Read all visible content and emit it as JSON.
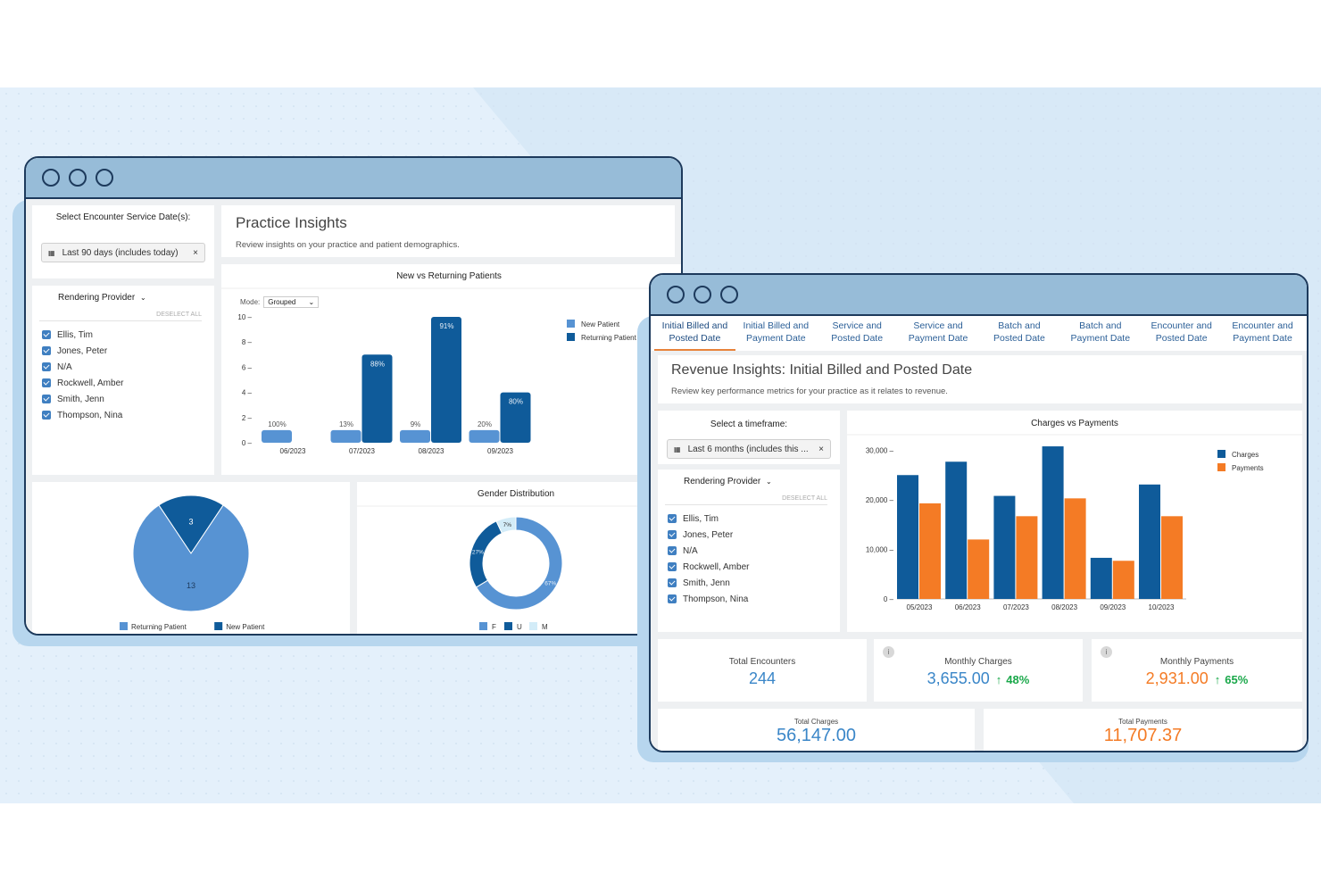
{
  "left_window": {
    "date_filter": {
      "title": "Select Encounter Service Date(s):",
      "chip_label": "Last 90 days (includes today)",
      "chip_close": "×"
    },
    "provider_filter": {
      "title": "Rendering Provider",
      "deselect_label": "DESELECT ALL",
      "providers": [
        "Ellis, Tim",
        "Jones, Peter",
        "N/A",
        "Rockwell, Amber",
        "Smith, Jenn",
        "Thompson, Nina"
      ]
    },
    "header": {
      "title": "Practice Insights",
      "subtitle": "Review insights on your practice and patient demographics."
    },
    "patients_chart": {
      "mode_label": "Mode:",
      "mode_value": "Grouped"
    },
    "patient_pie": {
      "values": [
        3,
        13
      ],
      "labels": [
        "3",
        "13"
      ]
    },
    "gender_chart": {
      "title": "Gender Distribution"
    }
  },
  "right_window": {
    "tabs": [
      {
        "line1": "Initial Billed and",
        "line2": "Posted Date",
        "active": true
      },
      {
        "line1": "Initial Billed and",
        "line2": "Payment Date",
        "active": false
      },
      {
        "line1": "Service and",
        "line2": "Posted Date",
        "active": false
      },
      {
        "line1": "Service and",
        "line2": "Payment Date",
        "active": false
      },
      {
        "line1": "Batch and",
        "line2": "Posted Date",
        "active": false
      },
      {
        "line1": "Batch and",
        "line2": "Payment Date",
        "active": false
      },
      {
        "line1": "Encounter and",
        "line2": "Posted Date",
        "active": false
      },
      {
        "line1": "Encounter and",
        "line2": "Payment Date",
        "active": false
      }
    ],
    "header": {
      "title": "Revenue Insights: Initial Billed and Posted Date",
      "subtitle": "Review key performance metrics for your practice as it relates to revenue."
    },
    "timeframe": {
      "title": "Select a timeframe:",
      "chip_label": "Last 6 months (includes this ...",
      "chip_close": "×"
    },
    "provider_filter": {
      "title": "Rendering Provider",
      "deselect_label": "DESELECT ALL",
      "providers": [
        "Ellis, Tim",
        "Jones, Peter",
        "N/A",
        "Rockwell, Amber",
        "Smith, Jenn",
        "Thompson, Nina"
      ]
    },
    "kpis": {
      "total_encounters": {
        "label": "Total Encounters",
        "value": "244"
      },
      "monthly_charges": {
        "label": "Monthly Charges",
        "value": "3,655.00",
        "change": "48%",
        "info": "i"
      },
      "monthly_payments": {
        "label": "Monthly Payments",
        "value": "2,931.00",
        "change": "65%",
        "info": "i"
      },
      "total_charges": {
        "label": "Total Charges",
        "value": "56,147.00"
      },
      "total_payments": {
        "label": "Total Payments",
        "value": "11,707.37"
      }
    }
  },
  "colors": {
    "dark_blue": "#0f5b9a",
    "light_blue": "#5793d3",
    "orange": "#f47b25",
    "pale_blue": "#d3ecf8",
    "green": "#1aa84a"
  },
  "chart_data": [
    {
      "type": "bar",
      "title": "New vs Returning Patients",
      "categories": [
        "06/2023",
        "07/2023",
        "08/2023",
        "09/2023"
      ],
      "series": [
        {
          "name": "New Patient",
          "values": [
            1,
            1,
            1,
            1
          ],
          "labels": [
            "100%",
            "13%",
            "9%",
            "20%"
          ]
        },
        {
          "name": "Returning Patient",
          "values": [
            0,
            7,
            10,
            4
          ],
          "labels": [
            "",
            "88%",
            "91%",
            "80%"
          ]
        }
      ],
      "ylim": [
        0,
        10
      ],
      "yticks": [
        0,
        2,
        4,
        6,
        8,
        10
      ],
      "legend": "top-right"
    },
    {
      "type": "pie",
      "values": [
        3,
        13
      ],
      "series": [
        {
          "name": "New Patient",
          "value": 3,
          "label": "3"
        },
        {
          "name": "Returning Patient",
          "value": 13,
          "label": "13"
        }
      ],
      "legend_order": [
        "Returning Patient",
        "New Patient"
      ],
      "legend": "bottom"
    },
    {
      "type": "pie",
      "title": "Gender Distribution",
      "series": [
        {
          "name": "F",
          "value": 67,
          "label": "67%"
        },
        {
          "name": "U",
          "value": 27,
          "label": "27%"
        },
        {
          "name": "M",
          "value": 7,
          "label": "7%"
        }
      ],
      "legend": "bottom"
    },
    {
      "type": "bar",
      "title": "Charges vs Payments",
      "categories": [
        "05/2023",
        "06/2023",
        "07/2023",
        "08/2023",
        "09/2023",
        "10/2023"
      ],
      "series": [
        {
          "name": "Charges",
          "values": [
            25000,
            27700,
            20800,
            30800,
            8300,
            23100
          ]
        },
        {
          "name": "Payments",
          "values": [
            19300,
            12000,
            16700,
            20300,
            7700,
            16700
          ]
        }
      ],
      "ylim": [
        0,
        30800
      ],
      "yticks": [
        0,
        10000,
        20000,
        30000
      ],
      "ytick_labels": [
        "0",
        "10,000",
        "20,000",
        "30,000"
      ],
      "legend": "top-right"
    }
  ]
}
